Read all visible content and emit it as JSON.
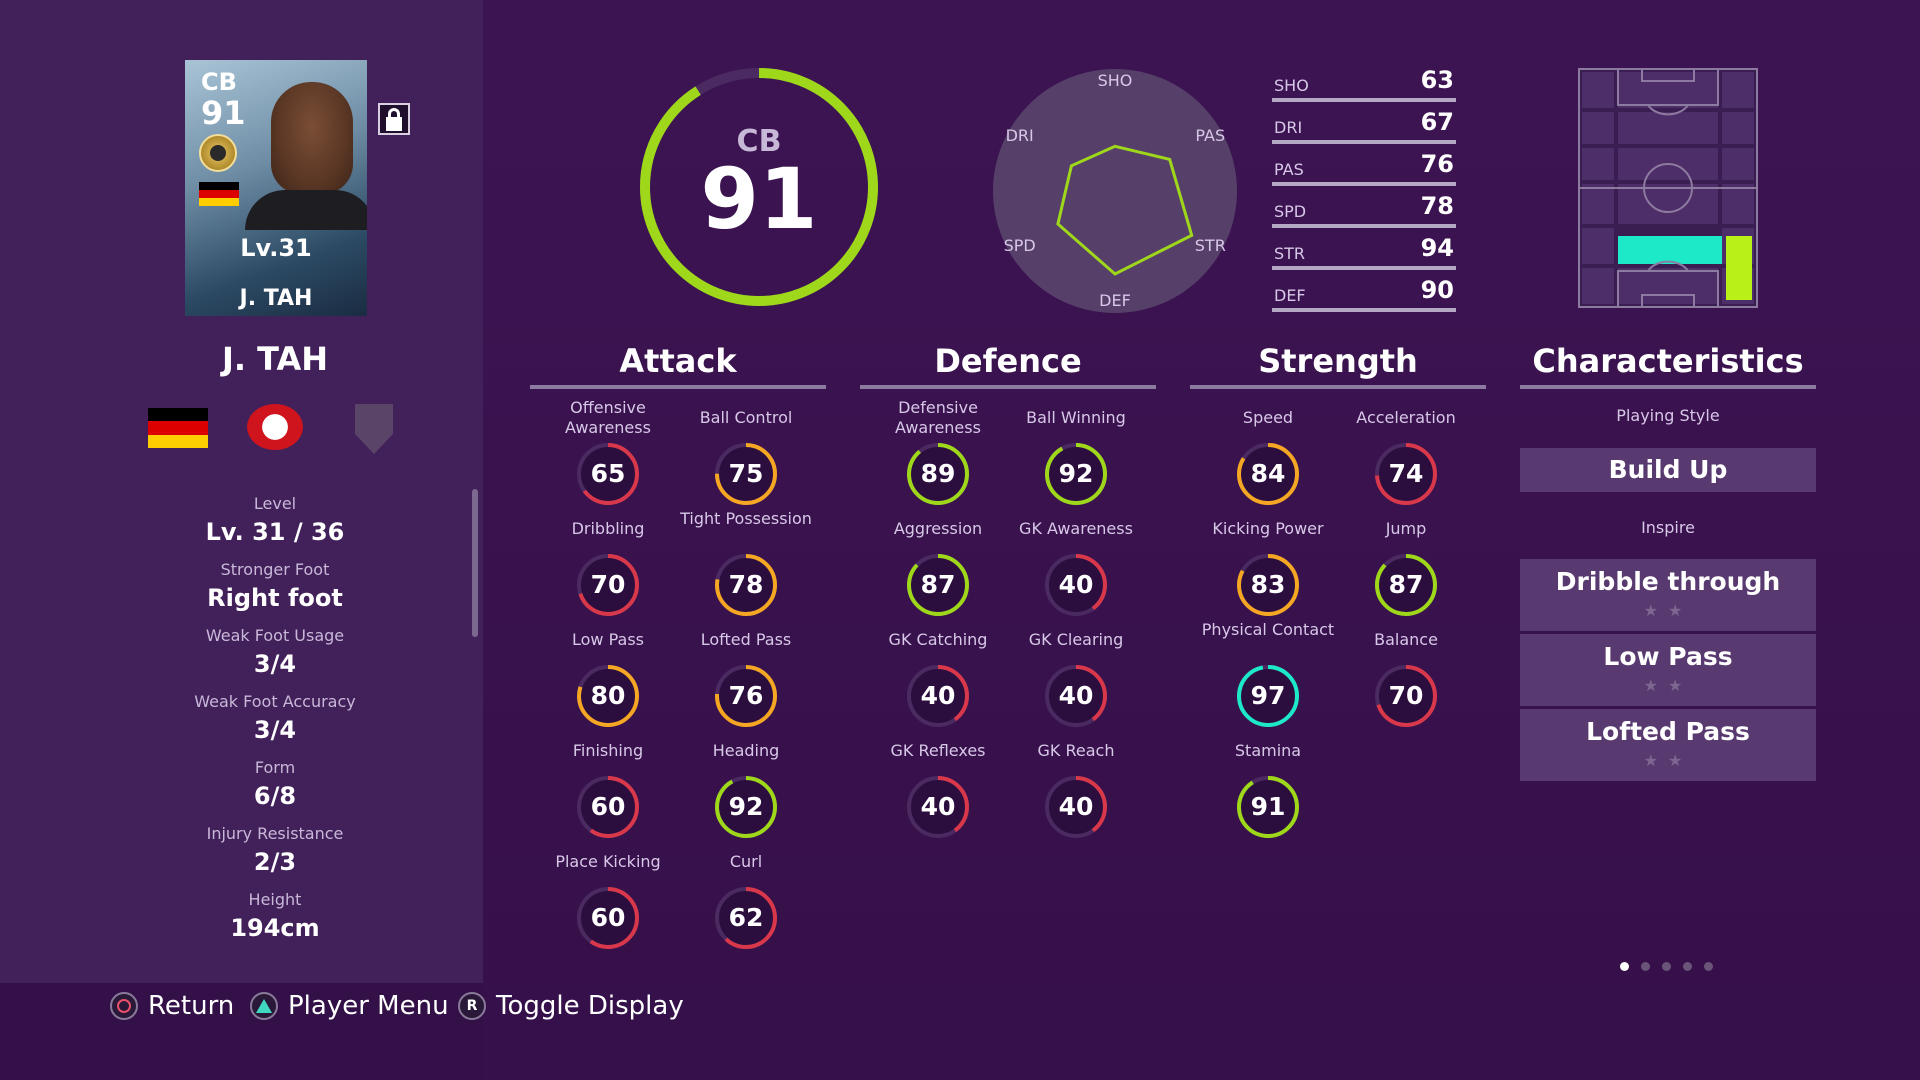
{
  "player": {
    "card_position": "CB",
    "card_rating": "91",
    "card_level": "Lv.31",
    "card_name": "J. TAH",
    "name": "J. TAH"
  },
  "info": [
    {
      "label": "Level",
      "value": "Lv. 31 / 36"
    },
    {
      "label": "Stronger Foot",
      "value": "Right foot"
    },
    {
      "label": "Weak Foot Usage",
      "value": "3/4"
    },
    {
      "label": "Weak Foot Accuracy",
      "value": "3/4"
    },
    {
      "label": "Form",
      "value": "6/8"
    },
    {
      "label": "Injury Resistance",
      "value": "2/3"
    },
    {
      "label": "Height",
      "value": "194cm"
    }
  ],
  "overall": {
    "position": "CB",
    "rating": "91",
    "fraction": 0.91
  },
  "radar": {
    "axes": [
      "SHO",
      "PAS",
      "STR",
      "DEF",
      "SPD",
      "DRI"
    ],
    "values": [
      63,
      76,
      94,
      90,
      78,
      67
    ]
  },
  "stat_bars": [
    {
      "label": "SHO",
      "value": "63"
    },
    {
      "label": "DRI",
      "value": "67"
    },
    {
      "label": "PAS",
      "value": "76"
    },
    {
      "label": "SPD",
      "value": "78"
    },
    {
      "label": "STR",
      "value": "94"
    },
    {
      "label": "DEF",
      "value": "90"
    }
  ],
  "sections": {
    "attack": "Attack",
    "defence": "Defence",
    "strength": "Strength",
    "characteristics": "Characteristics"
  },
  "attack": [
    {
      "label": "Offensive Awareness",
      "value": "65"
    },
    {
      "label": "Ball Control",
      "value": "75"
    },
    {
      "label": "Dribbling",
      "value": "70"
    },
    {
      "label": "Tight Possession",
      "value": "78"
    },
    {
      "label": "Low Pass",
      "value": "80"
    },
    {
      "label": "Lofted Pass",
      "value": "76"
    },
    {
      "label": "Finishing",
      "value": "60"
    },
    {
      "label": "Heading",
      "value": "92"
    },
    {
      "label": "Place Kicking",
      "value": "60"
    },
    {
      "label": "Curl",
      "value": "62"
    }
  ],
  "defence": [
    {
      "label": "Defensive Awareness",
      "value": "89"
    },
    {
      "label": "Ball Winning",
      "value": "92"
    },
    {
      "label": "Aggression",
      "value": "87"
    },
    {
      "label": "GK Awareness",
      "value": "40"
    },
    {
      "label": "GK Catching",
      "value": "40"
    },
    {
      "label": "GK Clearing",
      "value": "40"
    },
    {
      "label": "GK Reflexes",
      "value": "40"
    },
    {
      "label": "GK Reach",
      "value": "40"
    }
  ],
  "strength": [
    {
      "label": "Speed",
      "value": "84"
    },
    {
      "label": "Acceleration",
      "value": "74"
    },
    {
      "label": "Kicking Power",
      "value": "83"
    },
    {
      "label": "Jump",
      "value": "87"
    },
    {
      "label": "Physical Contact",
      "value": "97"
    },
    {
      "label": "Balance",
      "value": "70"
    },
    {
      "label": "Stamina",
      "value": "91"
    }
  ],
  "characteristics": {
    "playing_style_label": "Playing Style",
    "playing_style": "Build Up",
    "inspire_label": "Inspire",
    "inspire": [
      "Dribble through",
      "Low Pass",
      "Lofted Pass"
    ],
    "stars": "★★"
  },
  "controls": [
    {
      "label": "Return"
    },
    {
      "label": "Player Menu"
    },
    {
      "label": "Toggle Display",
      "glyph": "R"
    }
  ],
  "colors": {
    "accent_green": "#9fd81a",
    "accent_cyan": "#1de8c8",
    "orange": "#f5a623",
    "red": "#d8384a"
  }
}
